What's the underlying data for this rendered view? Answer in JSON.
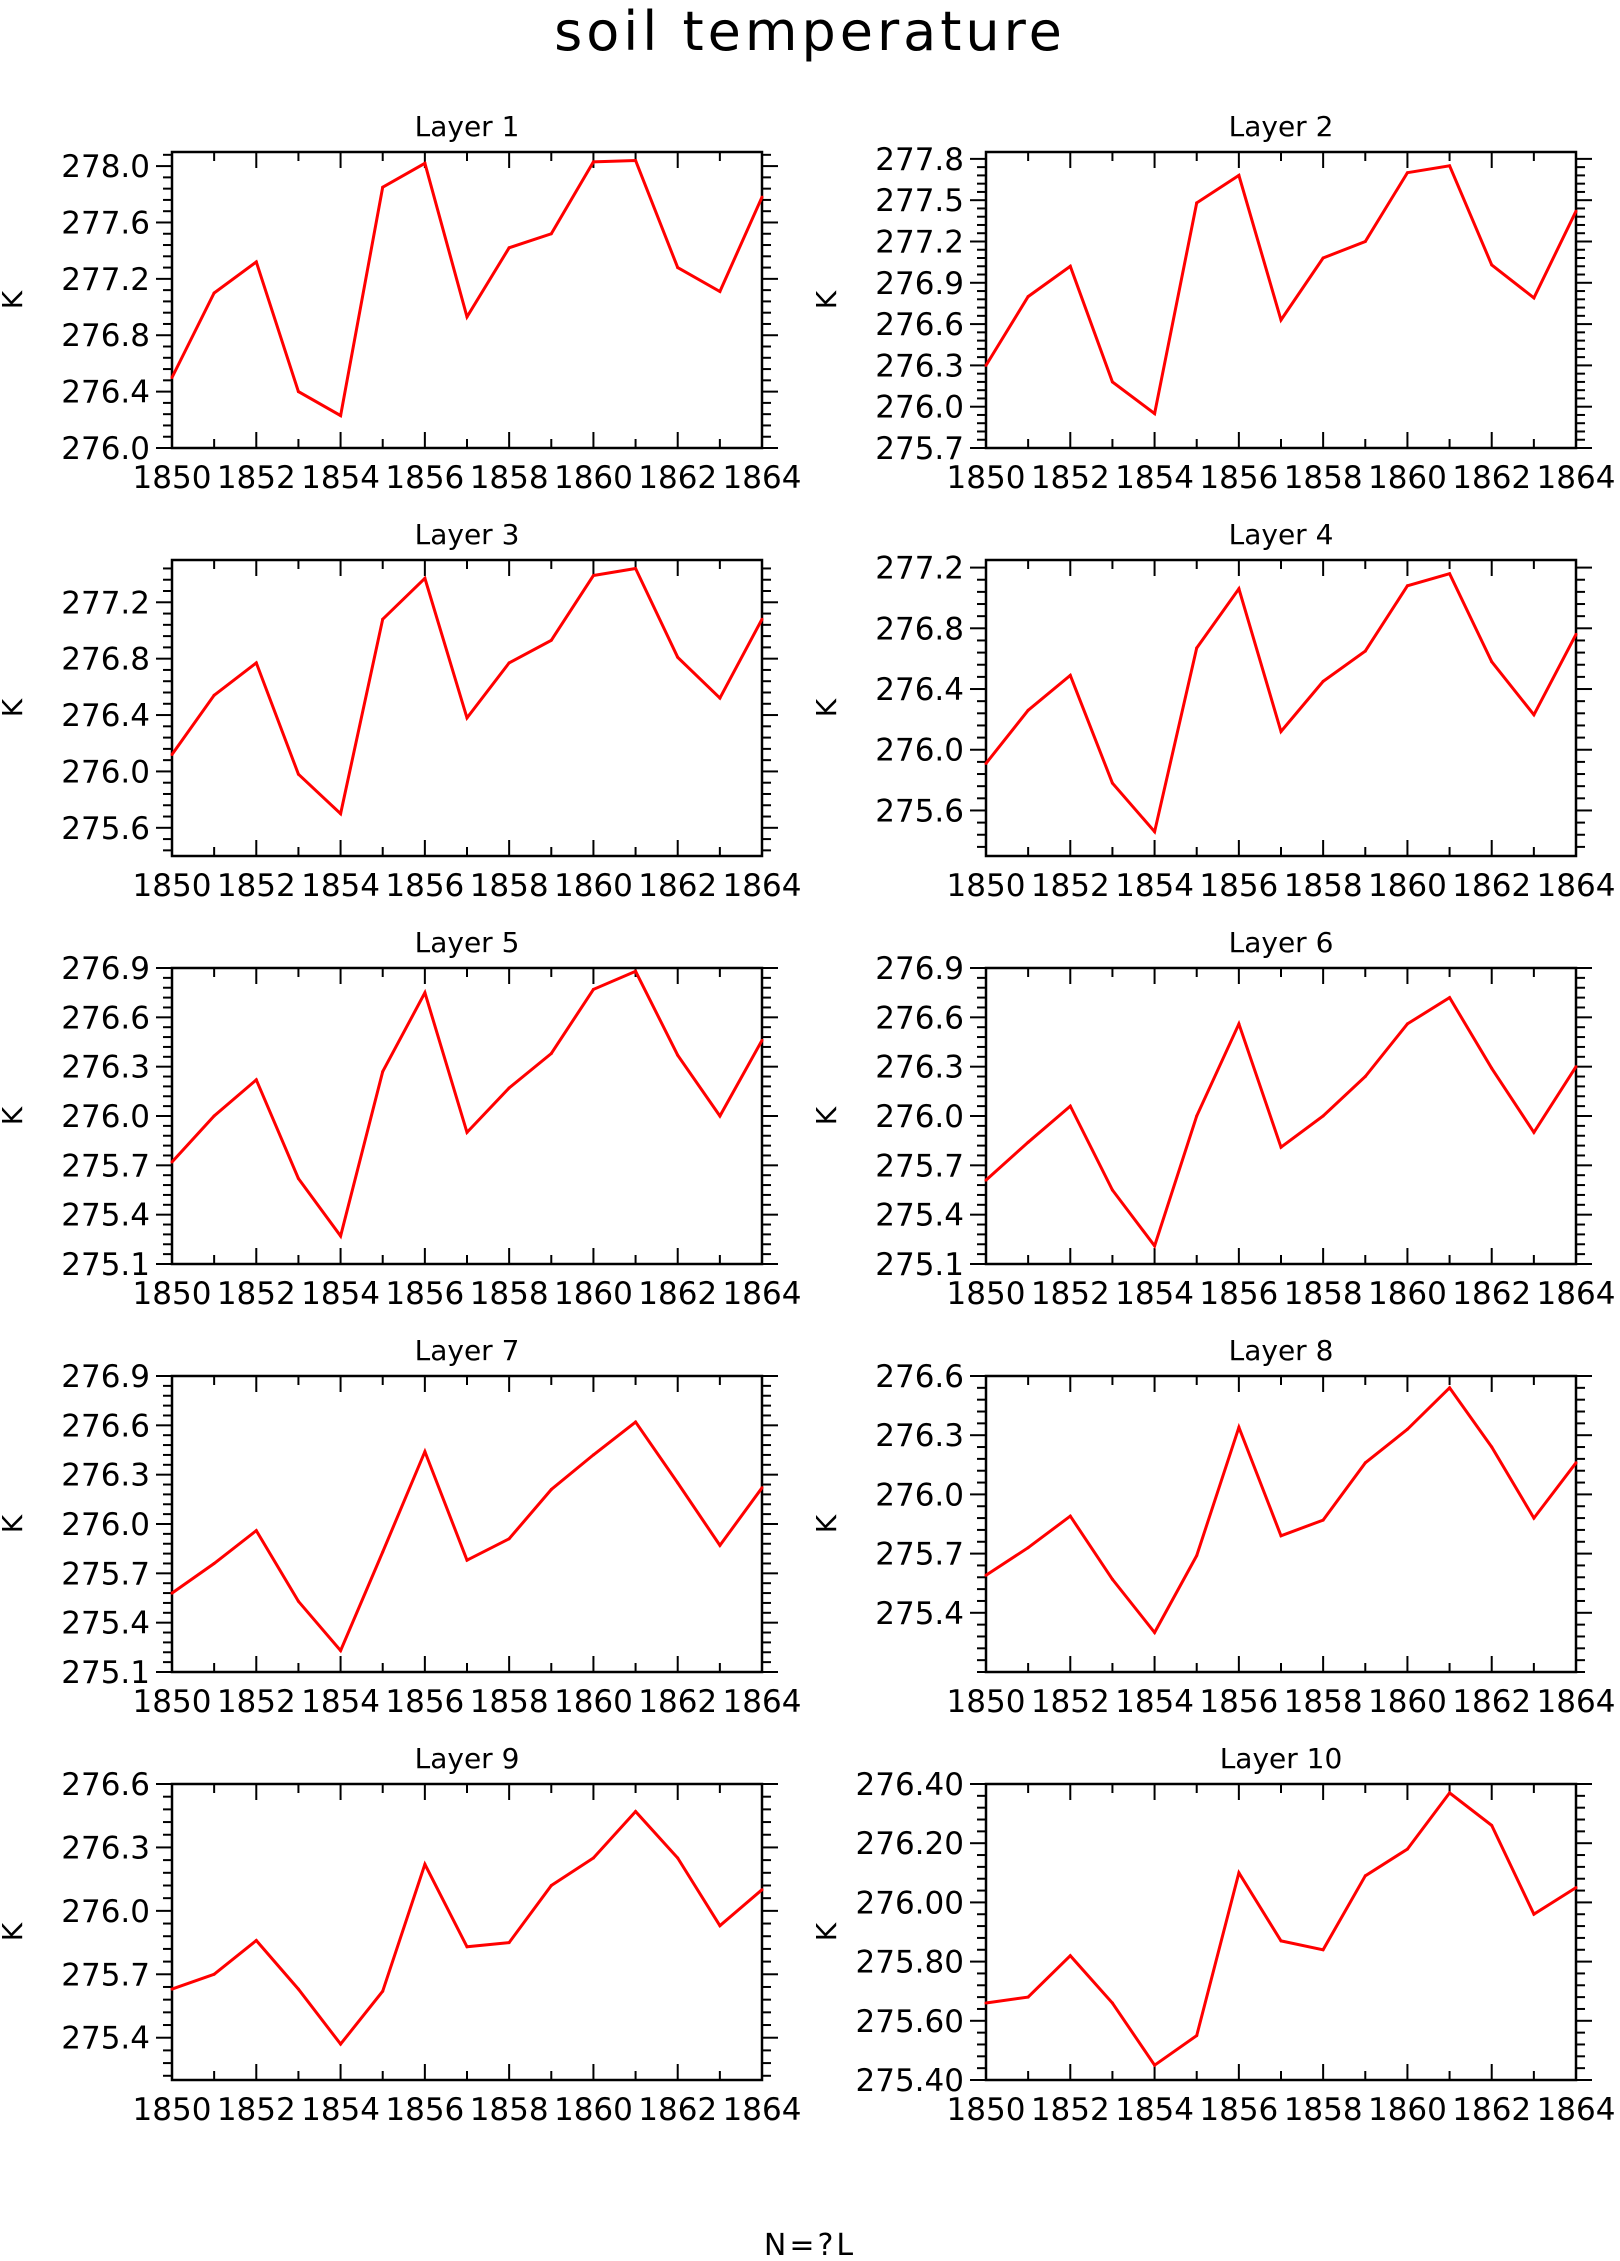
{
  "title": "soil temperature",
  "footer": "N=?L",
  "colors": {
    "line": "#ff0000",
    "axis": "#000000",
    "background": "#ffffff"
  },
  "chart_data": [
    {
      "type": "line",
      "title": "Layer 1",
      "ylabel": "K",
      "x": [
        1850,
        1851,
        1852,
        1853,
        1854,
        1855,
        1856,
        1857,
        1858,
        1859,
        1860,
        1861,
        1862,
        1863,
        1864
      ],
      "y": [
        276.5,
        277.1,
        277.32,
        276.4,
        276.23,
        277.85,
        278.02,
        276.93,
        277.42,
        277.52,
        278.03,
        278.04,
        277.28,
        277.11,
        277.78
      ],
      "xlim": [
        1850,
        1864
      ],
      "ylim": [
        276.0,
        278.1
      ],
      "yticks": [
        "278.0",
        "277.6",
        "277.2",
        "276.8",
        "276.4",
        "276.0"
      ],
      "xticks": [
        "1850",
        "1852",
        "1854",
        "1856",
        "1858",
        "1860",
        "1862",
        "1864"
      ],
      "grid": false
    },
    {
      "type": "line",
      "title": "Layer 2",
      "ylabel": "K",
      "x": [
        1850,
        1851,
        1852,
        1853,
        1854,
        1855,
        1856,
        1857,
        1858,
        1859,
        1860,
        1861,
        1862,
        1863,
        1864
      ],
      "y": [
        276.3,
        276.8,
        277.02,
        276.18,
        275.95,
        277.48,
        277.68,
        276.63,
        277.08,
        277.2,
        277.7,
        277.75,
        277.03,
        276.79,
        277.42
      ],
      "xlim": [
        1850,
        1864
      ],
      "ylim": [
        275.7,
        277.85
      ],
      "yticks": [
        "277.8",
        "277.5",
        "277.2",
        "276.9",
        "276.6",
        "276.3",
        "276.0",
        "275.7"
      ],
      "xticks": [
        "1850",
        "1852",
        "1854",
        "1856",
        "1858",
        "1860",
        "1862",
        "1864"
      ],
      "grid": false
    },
    {
      "type": "line",
      "title": "Layer 3",
      "ylabel": "K",
      "x": [
        1850,
        1851,
        1852,
        1853,
        1854,
        1855,
        1856,
        1857,
        1858,
        1859,
        1860,
        1861,
        1862,
        1863,
        1864
      ],
      "y": [
        276.12,
        276.54,
        276.77,
        275.98,
        275.7,
        277.08,
        277.37,
        276.38,
        276.77,
        276.93,
        277.39,
        277.44,
        276.81,
        276.52,
        277.08
      ],
      "xlim": [
        1850,
        1864
      ],
      "ylim": [
        275.4,
        277.5
      ],
      "yticks": [
        "277.2",
        "276.8",
        "276.4",
        "276.0",
        "275.6"
      ],
      "xticks": [
        "1850",
        "1852",
        "1854",
        "1856",
        "1858",
        "1860",
        "1862",
        "1864"
      ],
      "grid": false
    },
    {
      "type": "line",
      "title": "Layer 4",
      "ylabel": "K",
      "x": [
        1850,
        1851,
        1852,
        1853,
        1854,
        1855,
        1856,
        1857,
        1858,
        1859,
        1860,
        1861,
        1862,
        1863,
        1864
      ],
      "y": [
        275.91,
        276.26,
        276.49,
        275.78,
        275.46,
        276.67,
        277.06,
        276.12,
        276.45,
        276.65,
        277.08,
        277.16,
        276.58,
        276.23,
        276.76
      ],
      "xlim": [
        1850,
        1864
      ],
      "ylim": [
        275.3,
        277.25
      ],
      "yticks": [
        "277.2",
        "276.8",
        "276.4",
        "276.0",
        "275.6"
      ],
      "xticks": [
        "1850",
        "1852",
        "1854",
        "1856",
        "1858",
        "1860",
        "1862",
        "1864"
      ],
      "grid": false
    },
    {
      "type": "line",
      "title": "Layer 5",
      "ylabel": "K",
      "x": [
        1850,
        1851,
        1852,
        1853,
        1854,
        1855,
        1856,
        1857,
        1858,
        1859,
        1860,
        1861,
        1862,
        1863,
        1864
      ],
      "y": [
        275.72,
        276.0,
        276.22,
        275.62,
        275.27,
        276.27,
        276.75,
        275.9,
        276.17,
        276.38,
        276.77,
        276.88,
        276.37,
        276.0,
        276.46
      ],
      "xlim": [
        1850,
        1864
      ],
      "ylim": [
        275.1,
        276.9
      ],
      "yticks": [
        "276.9",
        "276.6",
        "276.3",
        "276.0",
        "275.7",
        "275.4",
        "275.1"
      ],
      "xticks": [
        "1850",
        "1852",
        "1854",
        "1856",
        "1858",
        "1860",
        "1862",
        "1864"
      ],
      "grid": false
    },
    {
      "type": "line",
      "title": "Layer 6",
      "ylabel": "K",
      "x": [
        1850,
        1851,
        1852,
        1853,
        1854,
        1855,
        1856,
        1857,
        1858,
        1859,
        1860,
        1861,
        1862,
        1863,
        1864
      ],
      "y": [
        275.61,
        275.84,
        276.06,
        275.55,
        275.21,
        276.0,
        276.56,
        275.81,
        276.0,
        276.24,
        276.56,
        276.72,
        276.29,
        275.9,
        276.3
      ],
      "xlim": [
        1850,
        1864
      ],
      "ylim": [
        275.1,
        276.9
      ],
      "yticks": [
        "276.9",
        "276.6",
        "276.3",
        "276.0",
        "275.7",
        "275.4",
        "275.1"
      ],
      "xticks": [
        "1850",
        "1852",
        "1854",
        "1856",
        "1858",
        "1860",
        "1862",
        "1864"
      ],
      "grid": false
    },
    {
      "type": "line",
      "title": "Layer 7",
      "ylabel": "K",
      "x": [
        1850,
        1851,
        1852,
        1853,
        1854,
        1855,
        1856,
        1857,
        1858,
        1859,
        1860,
        1861,
        1862,
        1863,
        1864
      ],
      "y": [
        275.58,
        275.76,
        275.96,
        275.53,
        275.23,
        275.83,
        276.44,
        275.78,
        275.91,
        276.21,
        276.42,
        276.62,
        276.25,
        275.87,
        276.22
      ],
      "xlim": [
        1850,
        1864
      ],
      "ylim": [
        275.1,
        276.9
      ],
      "yticks": [
        "276.9",
        "276.6",
        "276.3",
        "276.0",
        "275.7",
        "275.4",
        "275.1"
      ],
      "xticks": [
        "1850",
        "1852",
        "1854",
        "1856",
        "1858",
        "1860",
        "1862",
        "1864"
      ],
      "grid": false
    },
    {
      "type": "line",
      "title": "Layer 8",
      "ylabel": "K",
      "x": [
        1850,
        1851,
        1852,
        1853,
        1854,
        1855,
        1856,
        1857,
        1858,
        1859,
        1860,
        1861,
        1862,
        1863,
        1864
      ],
      "y": [
        275.59,
        275.73,
        275.89,
        275.57,
        275.3,
        275.69,
        276.34,
        275.79,
        275.87,
        276.16,
        276.33,
        276.54,
        276.24,
        275.88,
        276.16
      ],
      "xlim": [
        1850,
        1864
      ],
      "ylim": [
        275.1,
        276.6
      ],
      "yticks": [
        "276.6",
        "276.3",
        "276.0",
        "275.7",
        "275.4"
      ],
      "xticks": [
        "1850",
        "1852",
        "1854",
        "1856",
        "1858",
        "1860",
        "1862",
        "1864"
      ],
      "grid": false
    },
    {
      "type": "line",
      "title": "Layer 9",
      "ylabel": "K",
      "x": [
        1850,
        1851,
        1852,
        1853,
        1854,
        1855,
        1856,
        1857,
        1858,
        1859,
        1860,
        1861,
        1862,
        1863,
        1864
      ],
      "y": [
        275.63,
        275.7,
        275.86,
        275.63,
        275.37,
        275.62,
        276.22,
        275.83,
        275.85,
        276.12,
        276.25,
        276.47,
        276.25,
        275.93,
        276.1
      ],
      "xlim": [
        1850,
        1864
      ],
      "ylim": [
        275.2,
        276.6
      ],
      "yticks": [
        "276.6",
        "276.3",
        "276.0",
        "275.7",
        "275.4"
      ],
      "xticks": [
        "1850",
        "1852",
        "1854",
        "1856",
        "1858",
        "1860",
        "1862",
        "1864"
      ],
      "grid": false
    },
    {
      "type": "line",
      "title": "Layer 10",
      "ylabel": "K",
      "x": [
        1850,
        1851,
        1852,
        1853,
        1854,
        1855,
        1856,
        1857,
        1858,
        1859,
        1860,
        1861,
        1862,
        1863,
        1864
      ],
      "y": [
        275.66,
        275.68,
        275.82,
        275.66,
        275.45,
        275.55,
        276.1,
        275.87,
        275.84,
        276.09,
        276.18,
        276.37,
        276.26,
        275.96,
        276.05
      ],
      "xlim": [
        1850,
        1864
      ],
      "ylim": [
        275.4,
        276.4
      ],
      "yticks": [
        "276.40",
        "276.20",
        "276.00",
        "275.80",
        "275.60",
        "275.40"
      ],
      "xticks": [
        "1850",
        "1852",
        "1854",
        "1856",
        "1858",
        "1860",
        "1862",
        "1864"
      ],
      "grid": false
    }
  ]
}
